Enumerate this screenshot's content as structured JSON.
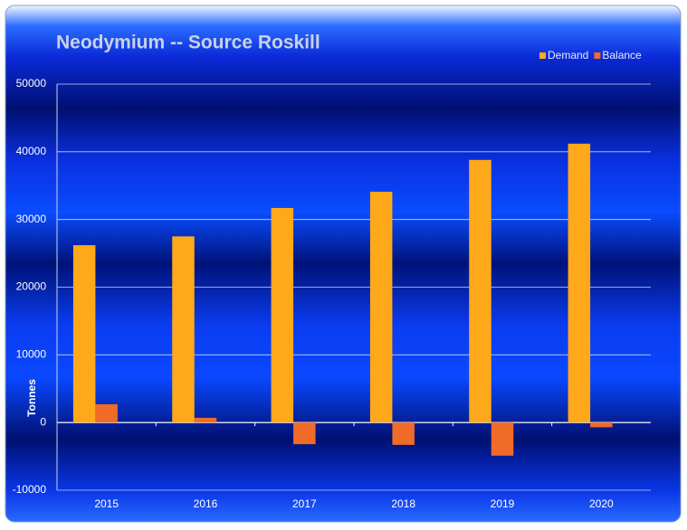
{
  "chart_data": {
    "type": "bar",
    "title": "Neodymium -- Source Roskill",
    "y_axis_label": "Tonnes",
    "categories": [
      "2015",
      "2016",
      "2017",
      "2018",
      "2019",
      "2020"
    ],
    "series": [
      {
        "name": "Demand",
        "color": "#ffa91a",
        "values": [
          26200,
          27500,
          31700,
          34100,
          38800,
          41200
        ]
      },
      {
        "name": "Balance",
        "color": "#f06a28",
        "values": [
          2700,
          700,
          -3200,
          -3300,
          -4900,
          -700
        ]
      }
    ],
    "ylim": [
      -10000,
      50000
    ],
    "yticks": [
      -10000,
      0,
      10000,
      20000,
      30000,
      40000,
      50000
    ],
    "grid": true,
    "legend": "top-right"
  }
}
